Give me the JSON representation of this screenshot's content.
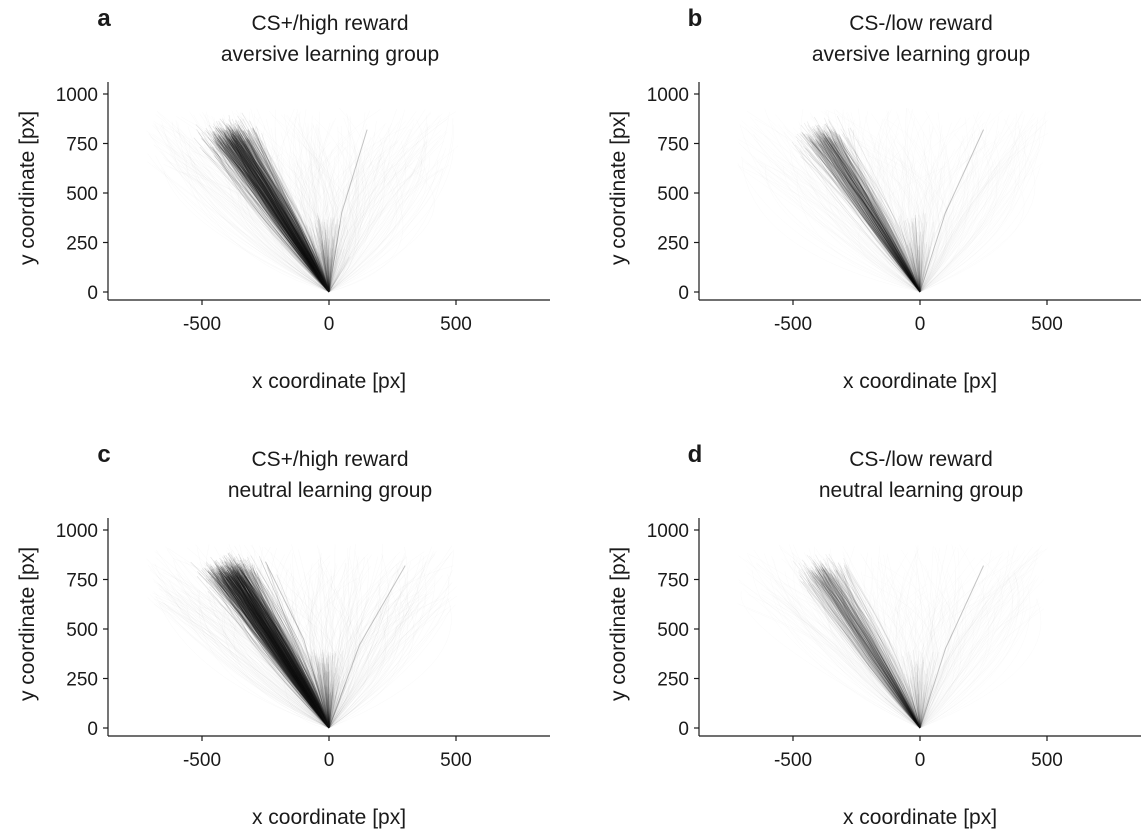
{
  "figure": {
    "panels": [
      {
        "letter": "a",
        "title_line1": "CS+/high reward",
        "title_line2": "aversive learning group"
      },
      {
        "letter": "b",
        "title_line1": "CS-/low reward",
        "title_line2": "aversive learning group"
      },
      {
        "letter": "c",
        "title_line1": "CS+/high reward",
        "title_line2": "neutral learning group"
      },
      {
        "letter": "d",
        "title_line1": "CS-/low reward",
        "title_line2": "neutral learning group"
      }
    ],
    "xlabel": "x coordinate [px]",
    "ylabel": "y coordinate [px]",
    "xticks": [
      "-500",
      "0",
      "500"
    ],
    "yticks": [
      "0",
      "250",
      "500",
      "750",
      "1000"
    ],
    "ink_color": "#1a1a1a"
  },
  "chart_data": [
    {
      "type": "line",
      "title": "CS+/high reward aversive learning group",
      "xlabel": "x coordinate [px]",
      "ylabel": "y coordinate [px]",
      "xlim": [
        -880,
        880
      ],
      "ylim": [
        -40,
        1050
      ],
      "xticks": [
        -500,
        0,
        500
      ],
      "yticks": [
        0,
        250,
        500,
        750,
        1000
      ],
      "grid": false,
      "density": 1.0,
      "series": [
        {
          "x": [
            0,
            -200,
            -380
          ],
          "y": [
            0,
            450,
            800
          ]
        },
        {
          "x": [
            0,
            -150,
            -300
          ],
          "y": [
            0,
            430,
            830
          ]
        },
        {
          "x": [
            0,
            50,
            150
          ],
          "y": [
            0,
            400,
            820
          ]
        }
      ]
    },
    {
      "type": "line",
      "title": "CS-/low reward aversive learning group",
      "xlabel": "x coordinate [px]",
      "ylabel": "y coordinate [px]",
      "xlim": [
        -880,
        880
      ],
      "ylim": [
        -40,
        1050
      ],
      "xticks": [
        -500,
        0,
        500
      ],
      "yticks": [
        0,
        250,
        500,
        750,
        1000
      ],
      "grid": false,
      "density": 0.55,
      "series": [
        {
          "x": [
            0,
            -200,
            -380
          ],
          "y": [
            0,
            450,
            800
          ]
        },
        {
          "x": [
            0,
            100,
            250
          ],
          "y": [
            0,
            400,
            820
          ]
        }
      ]
    },
    {
      "type": "line",
      "title": "CS+/high reward neutral learning group",
      "xlabel": "x coordinate [px]",
      "ylabel": "y coordinate [px]",
      "xlim": [
        -880,
        880
      ],
      "ylim": [
        -40,
        1050
      ],
      "xticks": [
        -500,
        0,
        500
      ],
      "yticks": [
        0,
        250,
        500,
        750,
        1000
      ],
      "grid": false,
      "density": 1.2,
      "series": [
        {
          "x": [
            0,
            -200,
            -380
          ],
          "y": [
            0,
            450,
            800
          ]
        },
        {
          "x": [
            0,
            -100,
            -250
          ],
          "y": [
            0,
            450,
            840
          ]
        },
        {
          "x": [
            0,
            120,
            300
          ],
          "y": [
            0,
            420,
            820
          ]
        }
      ]
    },
    {
      "type": "line",
      "title": "CS-/low reward neutral learning group",
      "xlabel": "x coordinate [px]",
      "ylabel": "y coordinate [px]",
      "xlim": [
        -880,
        880
      ],
      "ylim": [
        -40,
        1050
      ],
      "xticks": [
        -500,
        0,
        500
      ],
      "yticks": [
        0,
        250,
        500,
        750,
        1000
      ],
      "grid": false,
      "density": 0.45,
      "series": [
        {
          "x": [
            0,
            -200,
            -380
          ],
          "y": [
            0,
            450,
            800
          ]
        },
        {
          "x": [
            0,
            100,
            250
          ],
          "y": [
            0,
            400,
            820
          ]
        }
      ]
    }
  ]
}
